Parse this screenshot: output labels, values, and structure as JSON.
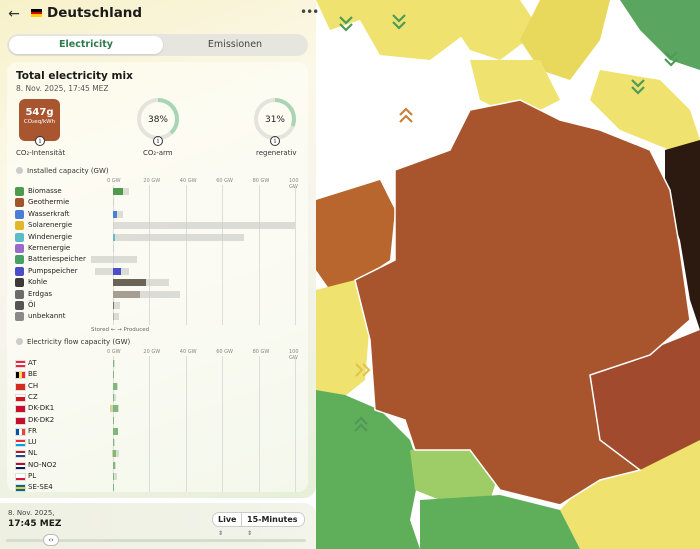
{
  "header": {
    "back_icon": "arrow-left-icon",
    "country_name": "Deutschland",
    "flag_colors": [
      "#000000",
      "#dd0000",
      "#ffce00"
    ],
    "menu_icon": "kebab-menu-icon"
  },
  "tabs": [
    {
      "label": "Electricity",
      "active": true
    },
    {
      "label": "Emissionen",
      "active": false
    }
  ],
  "mix": {
    "title": "Total electricity mix",
    "datetime": "8. Nov. 2025, 17:45 MEZ",
    "intensity": {
      "value": "547g",
      "unit": "CO₂eq/kWh",
      "label": "CO₂-Intensität",
      "color": "#a9552f"
    },
    "low_carbon": {
      "value": "38%",
      "label": "CO₂-arm",
      "fraction": 0.38
    },
    "renewable": {
      "value": "31%",
      "label": "regenerativ",
      "fraction": 0.31
    }
  },
  "installed": {
    "heading": "Installed capacity (GW)",
    "axis_ticks": [
      "0 GW",
      "20 GW",
      "40 GW",
      "60 GW",
      "80 GW",
      "100 GW"
    ],
    "axis_max": 100,
    "rows": [
      {
        "label": "Biomasse",
        "icon": "leaf-icon",
        "icon_color": "#4e9a4e",
        "produced": 5.5,
        "capacity": 9.0,
        "color": "#4e9a4e"
      },
      {
        "label": "Geothermie",
        "icon": "geothermal-icon",
        "icon_color": "#a0552d",
        "produced": 0.0,
        "capacity": 0.1,
        "color": "#a0552d"
      },
      {
        "label": "Wasserkraft",
        "icon": "water-icon",
        "icon_color": "#4a7fd6",
        "produced": 2.0,
        "capacity": 5.5,
        "color": "#4a7fd6"
      },
      {
        "label": "Solarenergie",
        "icon": "sun-icon",
        "icon_color": "#e3b62a",
        "produced": 0.0,
        "capacity": 100.0,
        "color": "#e3b62a"
      },
      {
        "label": "Windenergie",
        "icon": "wind-icon",
        "icon_color": "#5dbcc7",
        "produced": 1.0,
        "capacity": 72.0,
        "color": "#5dbcc7"
      },
      {
        "label": "Kernenergie",
        "icon": "atom-icon",
        "icon_color": "#9b6bc9",
        "produced": 0.0,
        "capacity": 0.0,
        "color": "#9b6bc9"
      },
      {
        "label": "Batteriespeicher",
        "icon": "battery-icon",
        "icon_color": "#47a067",
        "stored": 12.0,
        "produced": 0.0,
        "capacity": 13.0,
        "color": "#47a067"
      },
      {
        "label": "Pumpspeicher",
        "icon": "pump-icon",
        "icon_color": "#4b4fc7",
        "stored": 10.0,
        "produced": 4.5,
        "capacity": 9.0,
        "color": "#4b4fc7"
      },
      {
        "label": "Kohle",
        "icon": "coal-icon",
        "icon_color": "#3d3a35",
        "produced": 18.0,
        "capacity": 31.0,
        "color": "#6a6358"
      },
      {
        "label": "Erdgas",
        "icon": "gas-icon",
        "icon_color": "#6c6c6c",
        "produced": 15.0,
        "capacity": 37.0,
        "color": "#a59e93"
      },
      {
        "label": "Öl",
        "icon": "oil-icon",
        "icon_color": "#555555",
        "produced": 0.5,
        "capacity": 4.0,
        "color": "#7a7368"
      },
      {
        "label": "unbekannt",
        "icon": "question-icon",
        "icon_color": "#8a8a8a",
        "produced": 0.5,
        "capacity": 3.5,
        "color": "#b5b0a4"
      }
    ],
    "legend": "Stored ← → Produced"
  },
  "flow": {
    "heading": "Electricity flow capacity (GW)",
    "axis_ticks": [
      "0 GW",
      "20 GW",
      "40 GW",
      "60 GW",
      "80 GW",
      "100 GW"
    ],
    "axis_max": 100,
    "rows": [
      {
        "label": "AT",
        "flag": [
          [
            "#ed2939",
            "#ffffff",
            "#ed2939"
          ],
          "h"
        ],
        "imp": 0.0,
        "exp": 0.6,
        "cap": 1.2
      },
      {
        "label": "BE",
        "flag": [
          [
            "#000000",
            "#fae042",
            "#ed2939"
          ],
          "v"
        ],
        "imp": 0.0,
        "exp": 0.5,
        "cap": 0.8
      },
      {
        "label": "CH",
        "flag": [
          [
            "#d52b1e",
            "#d52b1e",
            "#d52b1e"
          ],
          "v"
        ],
        "imp": 0.0,
        "exp": 2.0,
        "cap": 2.5
      },
      {
        "label": "CZ",
        "flag": [
          [
            "#ffffff",
            "#d7141a",
            "#d7141a"
          ],
          "h"
        ],
        "imp": 0.0,
        "exp": 0.5,
        "cap": 1.5
      },
      {
        "label": "DK-DK1",
        "flag": [
          [
            "#c8102e",
            "#c8102e",
            "#c8102e"
          ],
          "h"
        ],
        "imp": 1.5,
        "exp": 2.5,
        "cap": 3.5
      },
      {
        "label": "DK-DK2",
        "flag": [
          [
            "#c8102e",
            "#c8102e",
            "#c8102e"
          ],
          "h"
        ],
        "imp": 0.0,
        "exp": 0.5,
        "cap": 0.8
      },
      {
        "label": "FR",
        "flag": [
          [
            "#0055a4",
            "#ffffff",
            "#ef4135"
          ],
          "v"
        ],
        "imp": 0.0,
        "exp": 2.5,
        "cap": 3.0
      },
      {
        "label": "LU",
        "flag": [
          [
            "#ed2939",
            "#ffffff",
            "#00a1de"
          ],
          "h"
        ],
        "imp": 0.0,
        "exp": 0.3,
        "cap": 1.0
      },
      {
        "label": "NL",
        "flag": [
          [
            "#ae1c28",
            "#ffffff",
            "#21468b"
          ],
          "h"
        ],
        "imp": 0.5,
        "exp": 1.5,
        "cap": 3.5
      },
      {
        "label": "NO-NO2",
        "flag": [
          [
            "#ba0c2f",
            "#ffffff",
            "#00205b"
          ],
          "h"
        ],
        "imp": 0.0,
        "exp": 1.0,
        "cap": 1.4
      },
      {
        "label": "PL",
        "flag": [
          [
            "#ffffff",
            "#ffffff",
            "#dc143c"
          ],
          "h"
        ],
        "imp": 0.0,
        "exp": 0.4,
        "cap": 2.0
      },
      {
        "label": "SE-SE4",
        "flag": [
          [
            "#006aa7",
            "#fecc00",
            "#006aa7"
          ],
          "h"
        ],
        "imp": 0.0,
        "exp": 0.6,
        "cap": 0.8
      }
    ]
  },
  "time": {
    "date": "8. Nov. 2025,",
    "time": "17:45 MEZ",
    "mode": "Live",
    "resolution": "15-Minutes",
    "slider_icon": "drag-handle-icon",
    "slider_position": 0.15
  },
  "map": {
    "country_colors": {
      "germany": "#a8552e",
      "france": "#5fae5a",
      "belgium": "#efe26f",
      "netherlands": "#b8662e",
      "denmark": "#efe26f",
      "poland": "#2c1a10",
      "czech": "#a24a2e",
      "switzerland": "#9ecc66",
      "austria": "#efe26f",
      "sea": "#ffffff"
    }
  }
}
